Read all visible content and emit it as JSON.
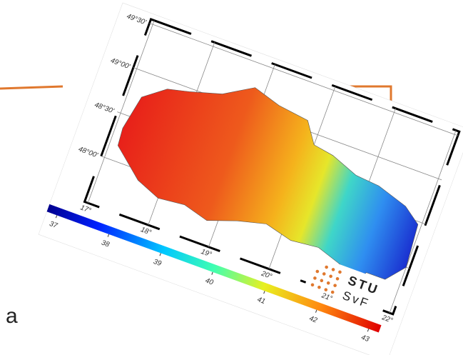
{
  "map": {
    "lat_labels": [
      "49°30'",
      "49°00'",
      "48°30'",
      "48°00'"
    ],
    "lon_labels": [
      "17°",
      "18°",
      "19°",
      "20°",
      "21°",
      "22°"
    ],
    "colorbar": {
      "ticks": [
        37,
        38,
        39,
        40,
        41,
        42,
        43
      ]
    },
    "logo": {
      "name": "STU",
      "faculty": "SvF"
    }
  },
  "caption": "a"
}
